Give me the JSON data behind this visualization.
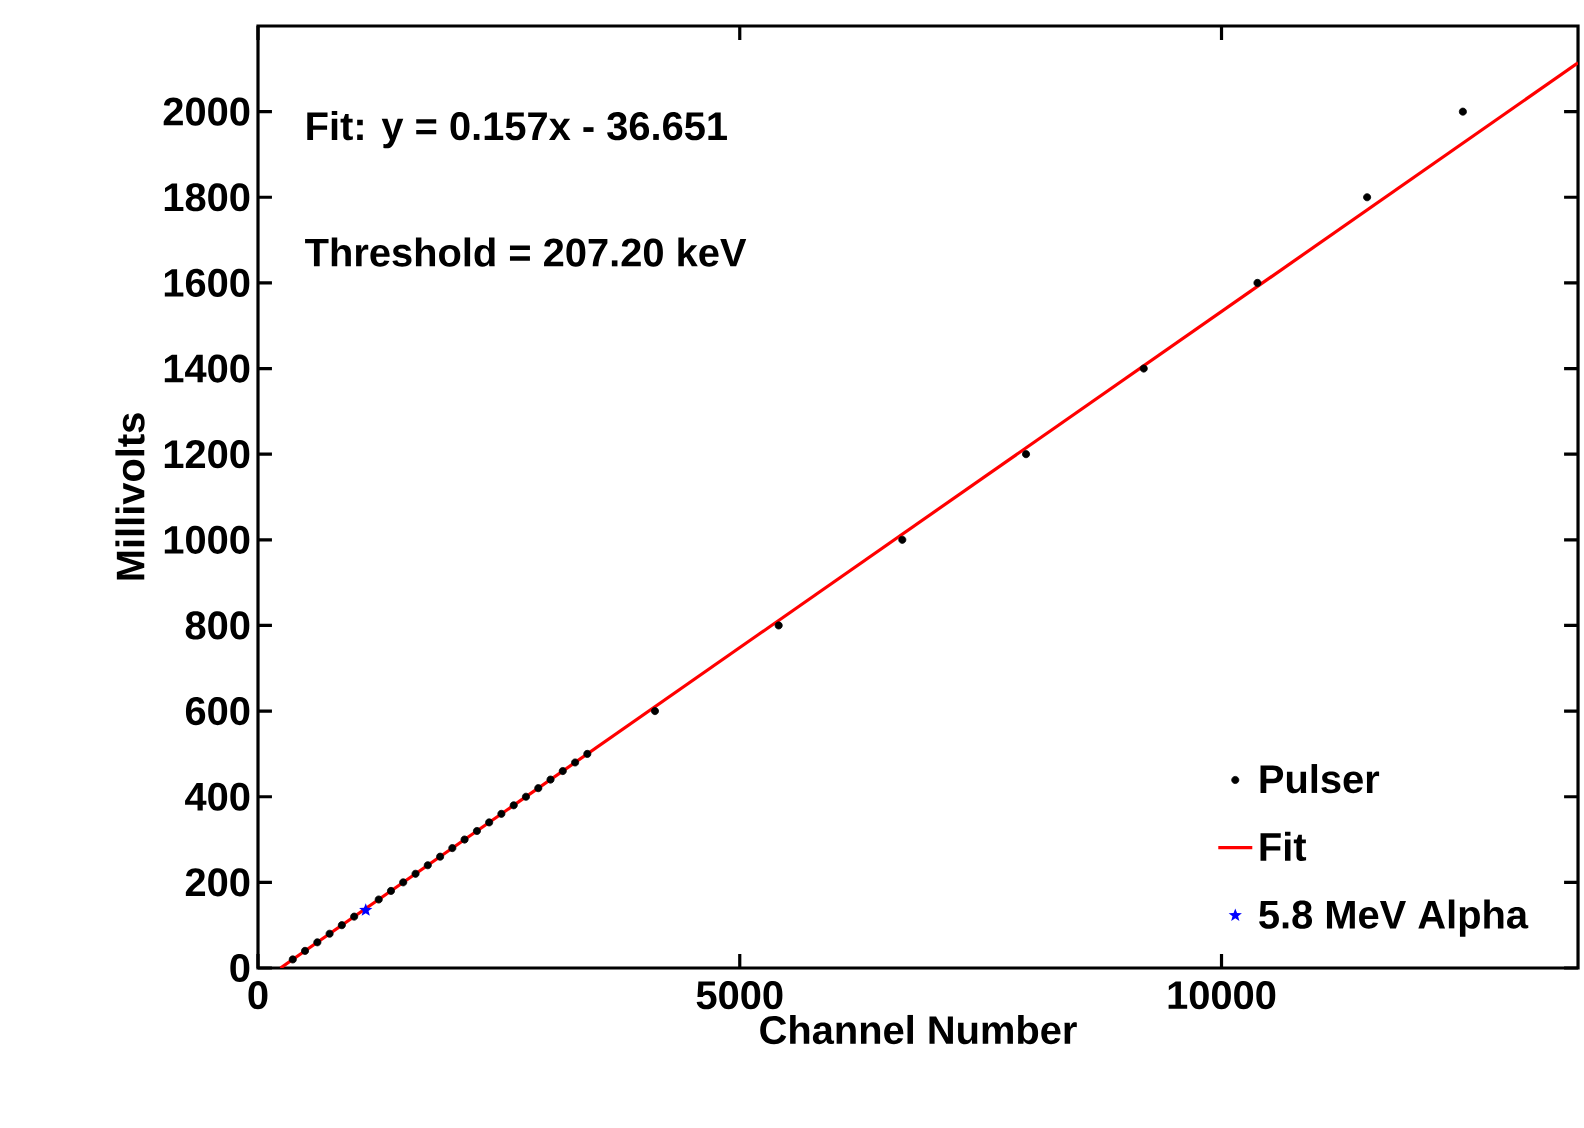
{
  "chart_data": {
    "type": "scatter",
    "xlabel": "Channel Number",
    "ylabel": "Millivolts",
    "annotations": [
      "Fit: y = 0.157x - 36.651",
      "Threshold = 207.20 keV"
    ],
    "xlim": [
      0,
      13700
    ],
    "ylim": [
      0,
      2200
    ],
    "xticks": [
      0,
      5000,
      10000
    ],
    "yticks": [
      0,
      200,
      400,
      600,
      800,
      1000,
      1200,
      1400,
      1600,
      1800,
      2000
    ],
    "legend": "bottom right",
    "grid": false,
    "series": [
      {
        "name": "Pulser",
        "marker": "circle",
        "color": "#000000",
        "x": [
          361,
          488,
          616,
          743,
          870,
          998,
          1125,
          1253,
          1380,
          1507,
          1635,
          1762,
          1890,
          2017,
          2144,
          2272,
          2399,
          2526,
          2654,
          2781,
          2909,
          3036,
          3163,
          3291,
          3418,
          4120,
          5404,
          6687,
          7971,
          9193,
          10373,
          11511,
          12505
        ],
        "values": [
          20,
          40,
          60,
          80,
          100,
          120,
          null,
          160,
          180,
          200,
          220,
          240,
          260,
          280,
          300,
          320,
          340,
          360,
          380,
          400,
          420,
          440,
          460,
          480,
          500,
          600,
          800,
          1000,
          1200,
          1400,
          1600,
          1800,
          2000
        ]
      },
      {
        "name": "Fit",
        "type": "line",
        "marker": "none",
        "line_style": "solid",
        "color": "#ff0000",
        "x": [
          233,
          13700
        ],
        "values": [
          0,
          2114
        ]
      },
      {
        "name": "5.8 MeV Alpha",
        "type": "scatter",
        "marker": "star",
        "color": "#0000ff",
        "x": [
          1118
        ],
        "values": [
          135
        ]
      }
    ]
  }
}
